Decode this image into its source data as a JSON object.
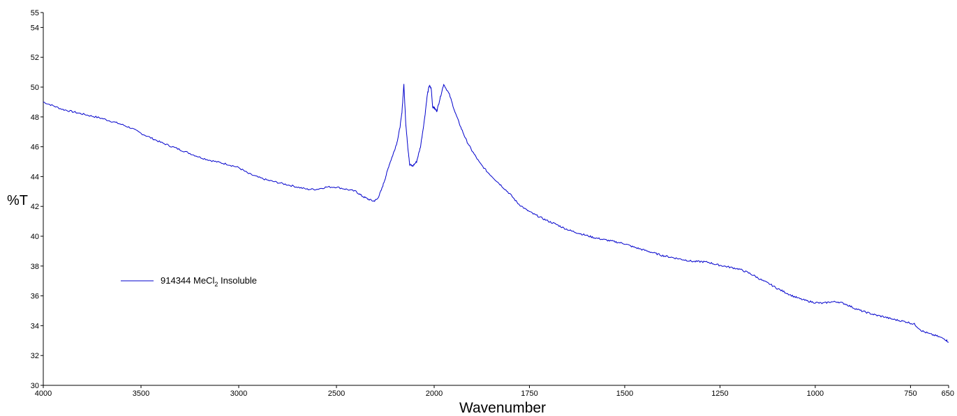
{
  "chart_data": {
    "type": "line",
    "title": "",
    "xlabel": "Wavenumber",
    "ylabel": "%T",
    "xlim": [
      4000,
      650
    ],
    "ylim": [
      30,
      55
    ],
    "x_reversed": true,
    "grid": false,
    "x_ticks": [
      4000,
      3500,
      3000,
      2500,
      2000,
      1750,
      1500,
      1250,
      1000,
      750,
      650
    ],
    "x_tick_labels": [
      "4000",
      "3500",
      "3000",
      "2500",
      "2000",
      "1750",
      "1500",
      "1250",
      "1000",
      "750",
      "650"
    ],
    "y_ticks": [
      30,
      32,
      34,
      36,
      38,
      40,
      42,
      44,
      46,
      48,
      50,
      52,
      54,
      55
    ],
    "y_tick_labels": [
      "30",
      "32",
      "34",
      "36",
      "38",
      "40",
      "42",
      "44",
      "46",
      "48",
      "50",
      "52",
      "54",
      "55"
    ],
    "x_axis_break": {
      "between": [
        [
          2000,
          650
        ]
      ],
      "note": "axis is piecewise: 4000-2000 and 2000-650 at different scales"
    },
    "legend": {
      "position": "middle-left",
      "label_main": "914344 MeCl",
      "label_sub": "2",
      "label_tail": " Insoluble"
    },
    "series": [
      {
        "name": "914344 MeCl2 Insoluble",
        "color": "#0000CC",
        "points": [
          [
            4000,
            49.0
          ],
          [
            3950,
            48.75
          ],
          [
            3900,
            48.5
          ],
          [
            3850,
            48.35
          ],
          [
            3800,
            48.2
          ],
          [
            3750,
            48.05
          ],
          [
            3700,
            47.9
          ],
          [
            3650,
            47.7
          ],
          [
            3600,
            47.5
          ],
          [
            3550,
            47.25
          ],
          [
            3500,
            46.9
          ],
          [
            3450,
            46.6
          ],
          [
            3400,
            46.3
          ],
          [
            3350,
            46.05
          ],
          [
            3300,
            45.8
          ],
          [
            3250,
            45.55
          ],
          [
            3200,
            45.3
          ],
          [
            3150,
            45.1
          ],
          [
            3100,
            44.95
          ],
          [
            3050,
            44.8
          ],
          [
            3000,
            44.6
          ],
          [
            2950,
            44.2
          ],
          [
            2900,
            43.95
          ],
          [
            2850,
            43.75
          ],
          [
            2800,
            43.6
          ],
          [
            2750,
            43.45
          ],
          [
            2700,
            43.3
          ],
          [
            2650,
            43.15
          ],
          [
            2600,
            43.15
          ],
          [
            2550,
            43.3
          ],
          [
            2500,
            43.3
          ],
          [
            2450,
            43.15
          ],
          [
            2400,
            43.0
          ],
          [
            2370,
            42.7
          ],
          [
            2340,
            42.5
          ],
          [
            2310,
            42.35
          ],
          [
            2290,
            42.5
          ],
          [
            2270,
            43.1
          ],
          [
            2250,
            43.9
          ],
          [
            2230,
            44.8
          ],
          [
            2210,
            45.5
          ],
          [
            2190,
            46.3
          ],
          [
            2175,
            47.3
          ],
          [
            2165,
            48.3
          ],
          [
            2155,
            50.2
          ],
          [
            2145,
            47.5
          ],
          [
            2135,
            46.0
          ],
          [
            2125,
            44.8
          ],
          [
            2110,
            44.7
          ],
          [
            2090,
            45.0
          ],
          [
            2070,
            46.0
          ],
          [
            2050,
            47.8
          ],
          [
            2035,
            49.5
          ],
          [
            2025,
            50.1
          ],
          [
            2015,
            49.9
          ],
          [
            2008,
            48.7
          ],
          [
            2000,
            48.6
          ],
          [
            1993,
            48.4
          ],
          [
            1985,
            49.2
          ],
          [
            1975,
            50.2
          ],
          [
            1960,
            49.5
          ],
          [
            1945,
            48.3
          ],
          [
            1930,
            47.3
          ],
          [
            1915,
            46.4
          ],
          [
            1900,
            45.7
          ],
          [
            1880,
            44.9
          ],
          [
            1860,
            44.3
          ],
          [
            1840,
            43.8
          ],
          [
            1820,
            43.3
          ],
          [
            1800,
            42.8
          ],
          [
            1780,
            42.2
          ],
          [
            1760,
            41.8
          ],
          [
            1740,
            41.5
          ],
          [
            1720,
            41.25
          ],
          [
            1700,
            41.0
          ],
          [
            1680,
            40.8
          ],
          [
            1660,
            40.55
          ],
          [
            1640,
            40.35
          ],
          [
            1620,
            40.2
          ],
          [
            1600,
            40.05
          ],
          [
            1580,
            39.9
          ],
          [
            1560,
            39.8
          ],
          [
            1540,
            39.7
          ],
          [
            1520,
            39.6
          ],
          [
            1500,
            39.5
          ],
          [
            1480,
            39.3
          ],
          [
            1460,
            39.15
          ],
          [
            1440,
            39.0
          ],
          [
            1420,
            38.85
          ],
          [
            1400,
            38.7
          ],
          [
            1380,
            38.6
          ],
          [
            1360,
            38.5
          ],
          [
            1340,
            38.4
          ],
          [
            1320,
            38.3
          ],
          [
            1300,
            38.3
          ],
          [
            1280,
            38.25
          ],
          [
            1260,
            38.1
          ],
          [
            1240,
            38.0
          ],
          [
            1220,
            37.9
          ],
          [
            1200,
            37.8
          ],
          [
            1180,
            37.6
          ],
          [
            1160,
            37.35
          ],
          [
            1140,
            37.05
          ],
          [
            1120,
            36.8
          ],
          [
            1100,
            36.5
          ],
          [
            1080,
            36.25
          ],
          [
            1060,
            36.0
          ],
          [
            1040,
            35.8
          ],
          [
            1020,
            35.65
          ],
          [
            1000,
            35.55
          ],
          [
            980,
            35.5
          ],
          [
            960,
            35.6
          ],
          [
            940,
            35.6
          ],
          [
            920,
            35.45
          ],
          [
            900,
            35.2
          ],
          [
            880,
            35.0
          ],
          [
            860,
            34.85
          ],
          [
            840,
            34.7
          ],
          [
            820,
            34.6
          ],
          [
            800,
            34.45
          ],
          [
            780,
            34.35
          ],
          [
            760,
            34.25
          ],
          [
            740,
            34.1
          ],
          [
            720,
            33.65
          ],
          [
            700,
            33.45
          ],
          [
            680,
            33.3
          ],
          [
            660,
            33.1
          ],
          [
            650,
            32.9
          ]
        ]
      }
    ]
  }
}
